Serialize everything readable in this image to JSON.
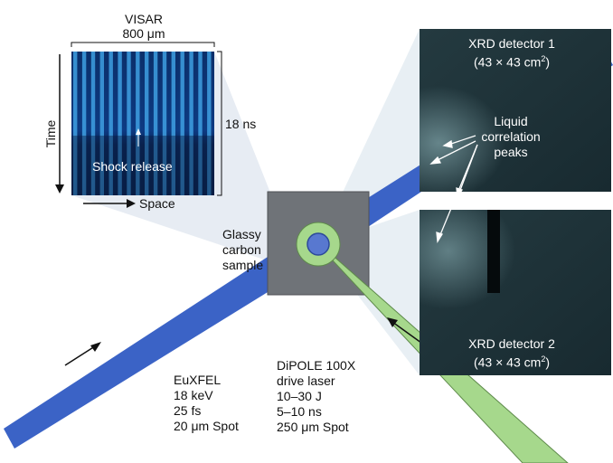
{
  "visar": {
    "title": "VISAR",
    "width_label": "800 μm",
    "time_label": "Time",
    "duration_label": "18 ns",
    "space_label": "Space",
    "annotation": "Shock release"
  },
  "sample": {
    "label_lines": [
      "Glassy",
      "carbon",
      "sample"
    ]
  },
  "detector1": {
    "title": "XRD detector 1",
    "size": "(43 × 43 cm",
    "size_sup": "2",
    "size_close": ")"
  },
  "detector2": {
    "title": "XRD detector 2",
    "size": "(43 × 43 cm",
    "size_sup": "2",
    "size_close": ")"
  },
  "peaks_label": [
    "Liquid",
    "correlation",
    "peaks"
  ],
  "euxfel": {
    "lines": [
      "EuXFEL",
      "18 keV",
      "25 fs",
      "20 μm Spot"
    ]
  },
  "laser": {
    "lines": [
      "DiPOLE 100X",
      "drive laser",
      "10–30 J",
      "5–10 ns",
      "250 μm Spot"
    ]
  },
  "colors": {
    "xray_beam": "#3b63c6",
    "laser_beam": "#a6d88c",
    "detector_bg": "#1f3238",
    "sample_block": "#6f7378",
    "visar_stripe": "#45aef0"
  }
}
